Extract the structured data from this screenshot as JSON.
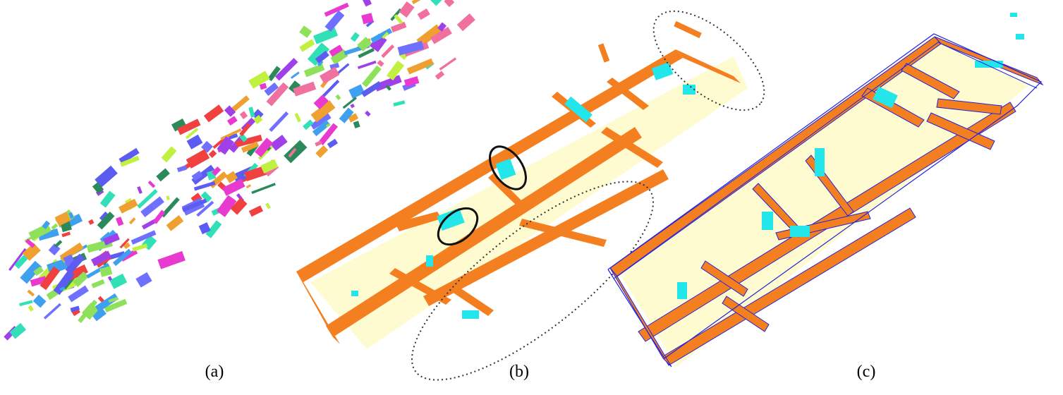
{
  "figure": {
    "panels": [
      {
        "id": "a",
        "label": "(a)",
        "content": "segmented-point-cloud"
      },
      {
        "id": "b",
        "label": "(b)",
        "content": "classified-wall-floor-points"
      },
      {
        "id": "c",
        "label": "(c)",
        "content": "reconstructed-wall-model"
      }
    ],
    "colors": {
      "floor": "#fffbd0",
      "wall": "#f47f20",
      "opening": "#22e6ea",
      "wireframe": "#2222dd",
      "annotation": "#111111"
    },
    "segment_palette": [
      "#e83ad0",
      "#8fe05a",
      "#5c5cf0",
      "#32e0b8",
      "#f04040",
      "#a040e8",
      "#f0a030",
      "#40a0f0",
      "#c0f040",
      "#2a8a5a",
      "#f070a0",
      "#7070ff"
    ]
  }
}
